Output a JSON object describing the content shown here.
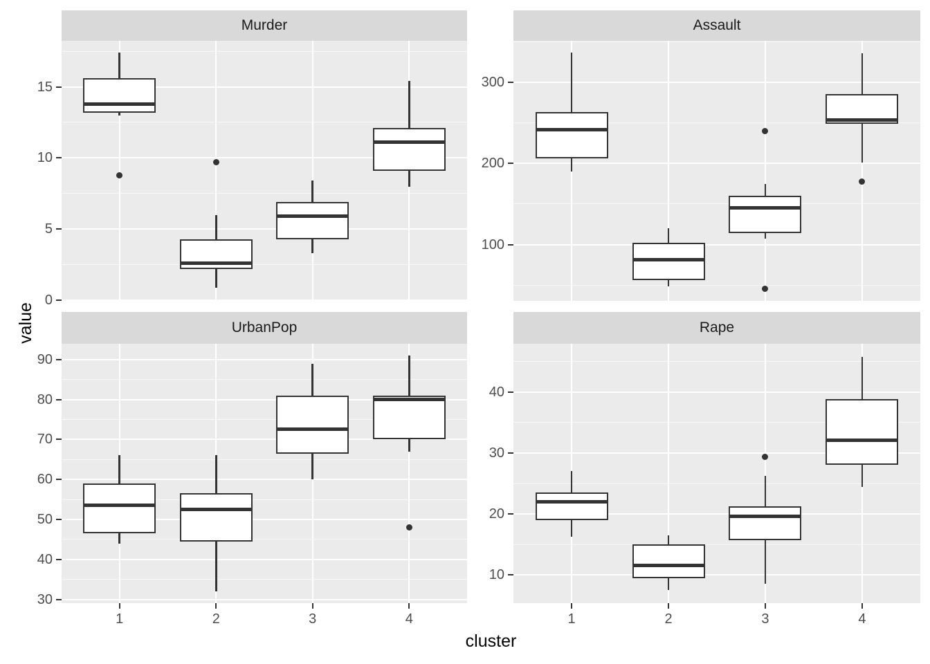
{
  "chart_data": {
    "type": "boxplot",
    "title": "",
    "xlabel": "cluster",
    "ylabel": "value",
    "categories": [
      "1",
      "2",
      "3",
      "4"
    ],
    "legend": "none",
    "grid": "on",
    "colors": {
      "panel_bg": "#EBEBEB",
      "strip_bg": "#D9D9D9",
      "gridline": "#FFFFFF",
      "box_stroke": "#333333",
      "box_fill": "#FFFFFF",
      "tick_label": "#4D4D4D",
      "axis_title": "#000000",
      "strip_text": "#1A1A1A"
    },
    "facets": [
      {
        "title": "Murder",
        "ylim": [
          -0.03,
          18.23
        ],
        "yticks": [
          0,
          5,
          10,
          15
        ],
        "boxes": [
          {
            "cluster": "1",
            "whisker_low": 13.0,
            "q1": 13.2,
            "median": 13.8,
            "q3": 15.6,
            "whisker_high": 17.4,
            "outliers": [
              8.8
            ]
          },
          {
            "cluster": "2",
            "whisker_low": 0.9,
            "q1": 2.2,
            "median": 2.6,
            "q3": 4.3,
            "whisker_high": 6.0,
            "outliers": [
              9.7
            ]
          },
          {
            "cluster": "3",
            "whisker_low": 3.3,
            "q1": 4.3,
            "median": 5.9,
            "q3": 6.9,
            "whisker_high": 8.4,
            "outliers": []
          },
          {
            "cluster": "4",
            "whisker_low": 8.0,
            "q1": 9.1,
            "median": 11.1,
            "q3": 12.1,
            "whisker_high": 15.4,
            "outliers": []
          }
        ]
      },
      {
        "title": "Assault",
        "ylim": [
          30.4,
          351.6
        ],
        "yticks": [
          100,
          200,
          300
        ],
        "boxes": [
          {
            "cluster": "1",
            "whisker_low": 190,
            "q1": 206,
            "median": 242,
            "q3": 264,
            "whisker_high": 337,
            "outliers": []
          },
          {
            "cluster": "2",
            "whisker_low": 48,
            "q1": 56,
            "median": 81,
            "q3": 102,
            "whisker_high": 120,
            "outliers": []
          },
          {
            "cluster": "3",
            "whisker_low": 107,
            "q1": 114,
            "median": 145,
            "q3": 160,
            "whisker_high": 175,
            "outliers": [
              240,
              45
            ]
          },
          {
            "cluster": "4",
            "whisker_low": 201,
            "q1": 249,
            "median": 254,
            "q3": 286,
            "whisker_high": 336,
            "outliers": [
              178
            ]
          }
        ]
      },
      {
        "title": "UrbanPop",
        "ylim": [
          29.05,
          93.95
        ],
        "yticks": [
          30,
          40,
          50,
          60,
          70,
          80,
          90
        ],
        "boxes": [
          {
            "cluster": "1",
            "whisker_low": 44,
            "q1": 46.5,
            "median": 53.5,
            "q3": 59,
            "whisker_high": 66,
            "outliers": []
          },
          {
            "cluster": "2",
            "whisker_low": 32,
            "q1": 44.5,
            "median": 52.5,
            "q3": 56.5,
            "whisker_high": 66,
            "outliers": []
          },
          {
            "cluster": "3",
            "whisker_low": 60,
            "q1": 66.5,
            "median": 72.5,
            "q3": 81,
            "whisker_high": 89,
            "outliers": []
          },
          {
            "cluster": "4",
            "whisker_low": 67,
            "q1": 70,
            "median": 80,
            "q3": 81,
            "whisker_high": 91,
            "outliers": [
              48
            ]
          }
        ]
      },
      {
        "title": "Rape",
        "ylim": [
          5.37,
          47.93
        ],
        "yticks": [
          10,
          20,
          30,
          40
        ],
        "boxes": [
          {
            "cluster": "1",
            "whisker_low": 16.3,
            "q1": 19.0,
            "median": 22.0,
            "q3": 23.5,
            "whisker_high": 27.0,
            "outliers": []
          },
          {
            "cluster": "2",
            "whisker_low": 7.5,
            "q1": 9.5,
            "median": 11.5,
            "q3": 15.0,
            "whisker_high": 16.5,
            "outliers": []
          },
          {
            "cluster": "3",
            "whisker_low": 8.5,
            "q1": 15.7,
            "median": 19.6,
            "q3": 21.3,
            "whisker_high": 26.3,
            "outliers": [
              29.4
            ]
          },
          {
            "cluster": "4",
            "whisker_low": 24.4,
            "q1": 28.1,
            "median": 32.1,
            "q3": 38.8,
            "whisker_high": 45.8,
            "outliers": []
          }
        ]
      }
    ]
  }
}
